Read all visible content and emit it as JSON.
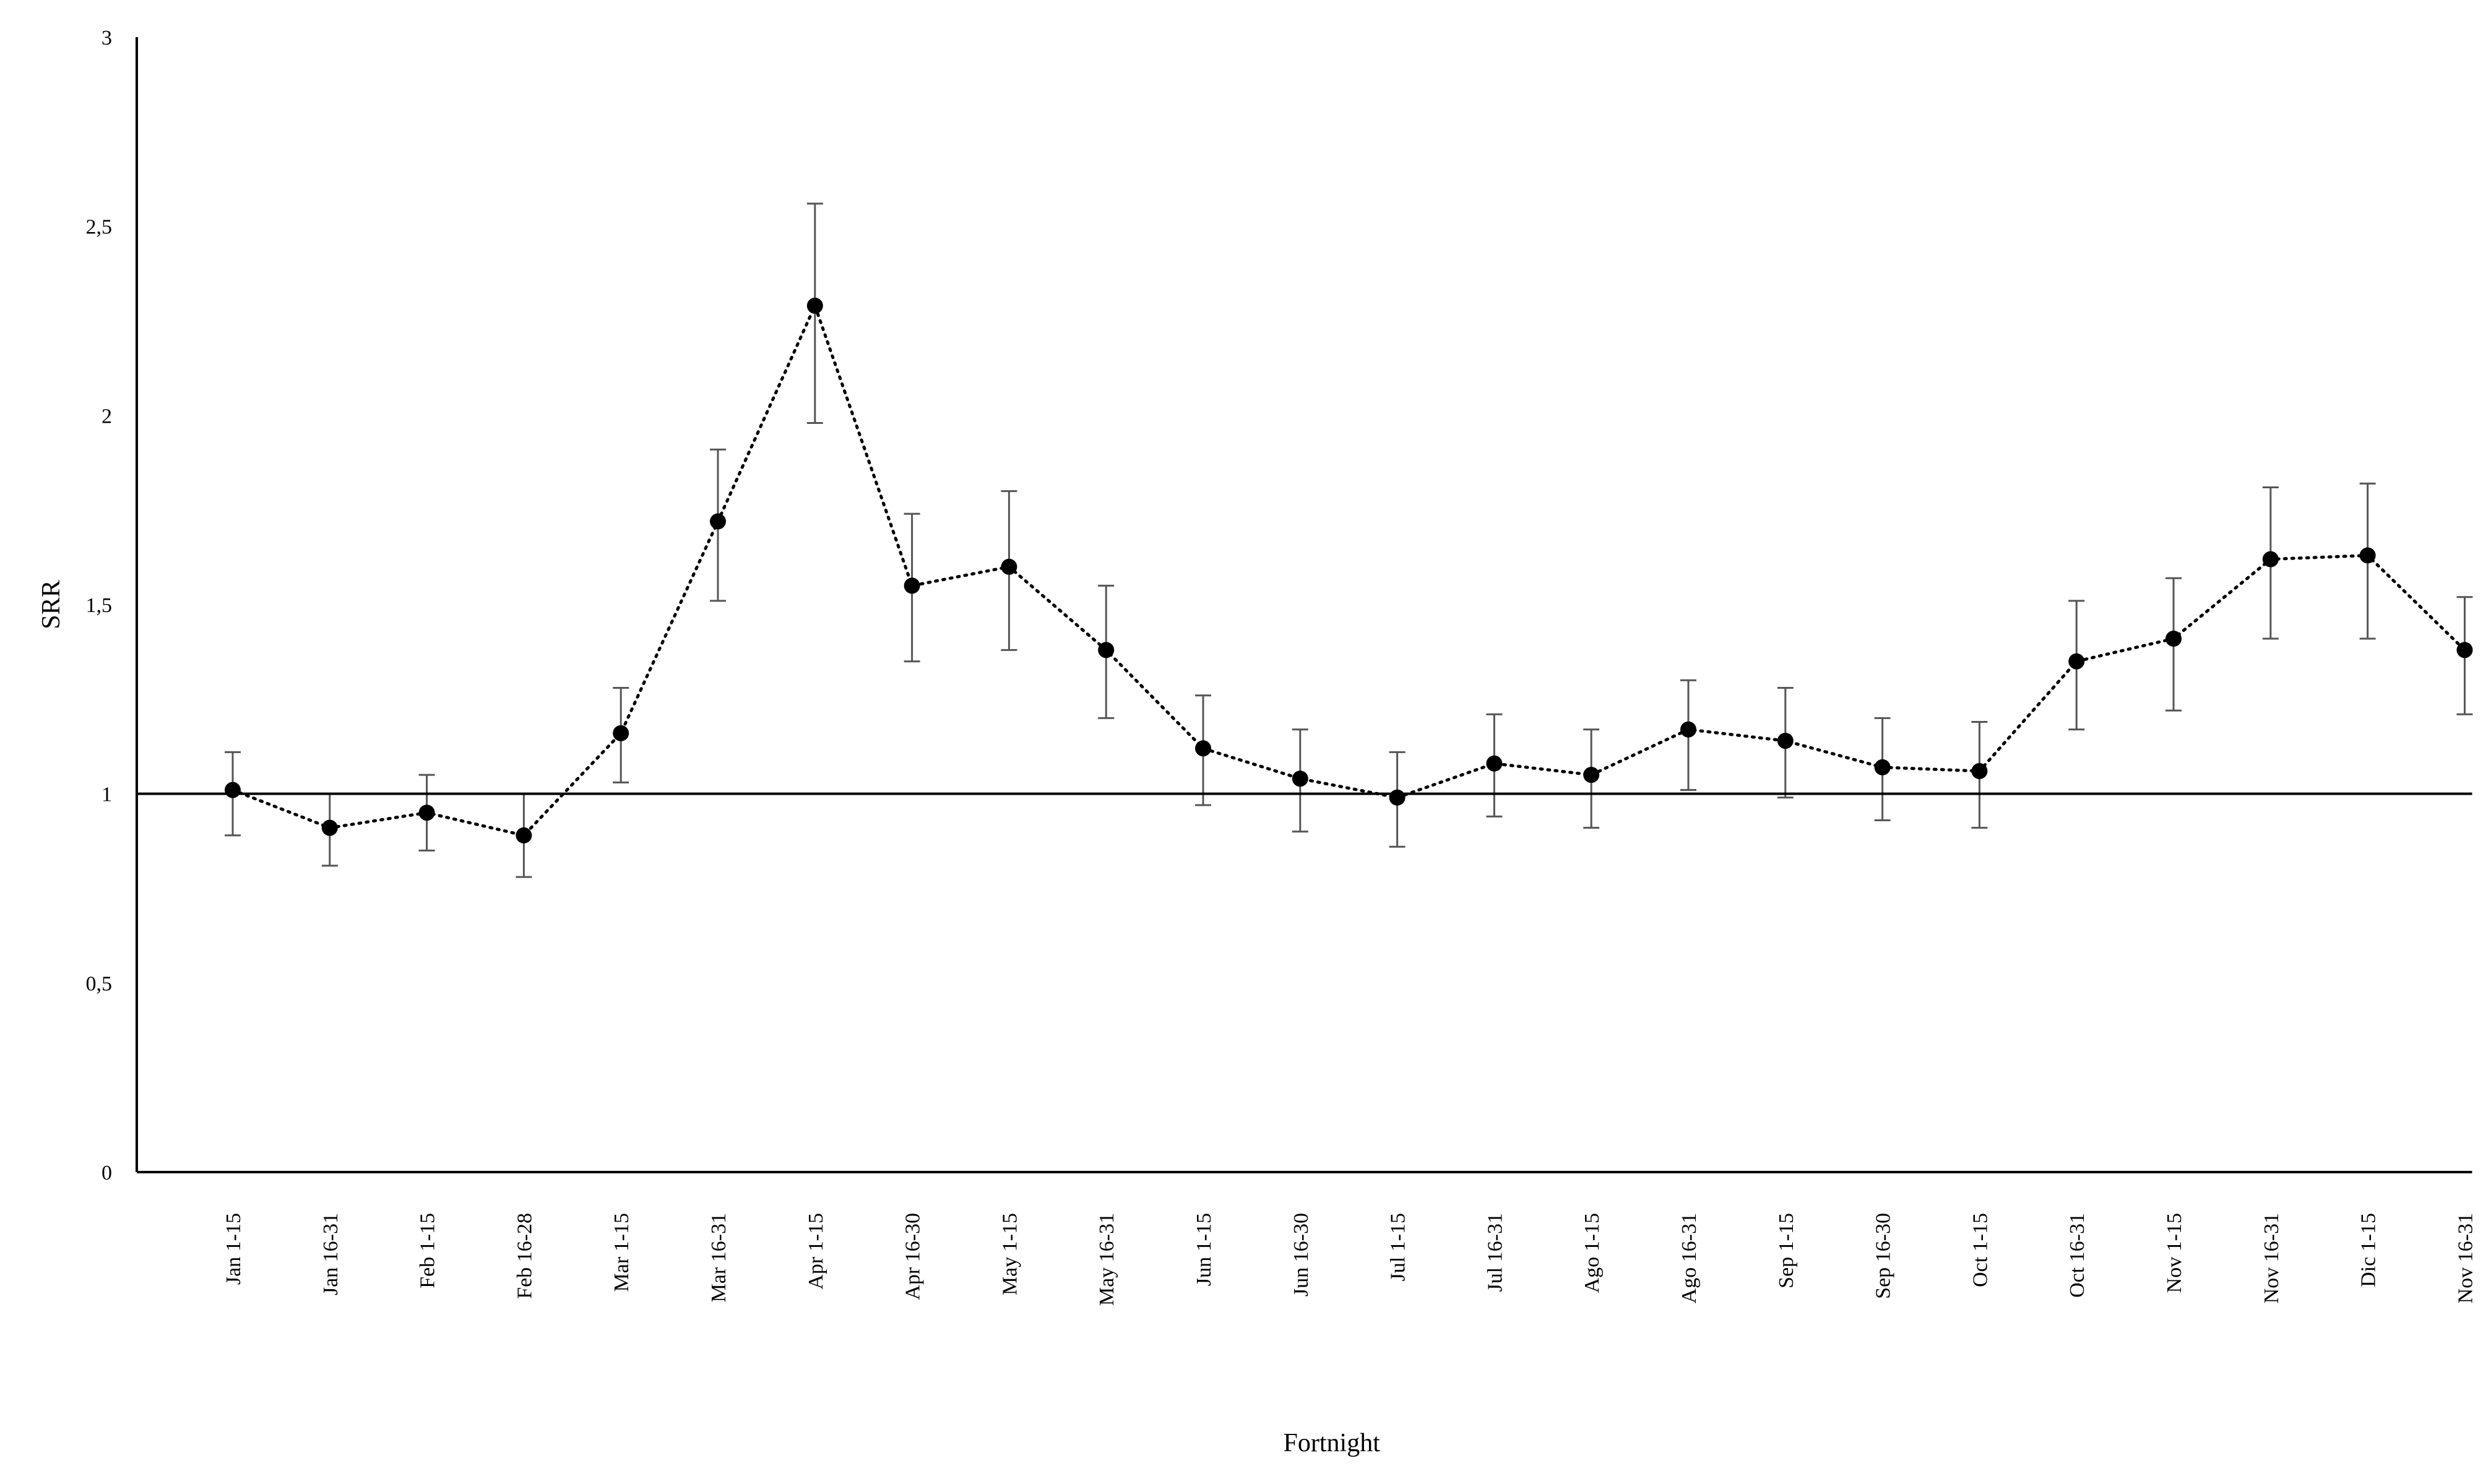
{
  "chart_data": {
    "type": "line",
    "xlabel": "Fortnight",
    "ylabel": "SRR",
    "ylim": [
      0,
      3
    ],
    "yticks": [
      {
        "value": 0,
        "label": "0"
      },
      {
        "value": 0.5,
        "label": "0,5"
      },
      {
        "value": 1,
        "label": "1"
      },
      {
        "value": 1.5,
        "label": "1,5"
      },
      {
        "value": 2,
        "label": "2"
      },
      {
        "value": 2.5,
        "label": "2,5"
      },
      {
        "value": 3,
        "label": "3"
      }
    ],
    "reference_line": 1,
    "grid": false,
    "categories": [
      "Jan 1-15",
      "Jan 16-31",
      "Feb 1-15",
      "Feb 16-28",
      "Mar 1-15",
      "Mar 16-31",
      "Apr 1-15",
      "Apr 16-30",
      "May 1-15",
      "May 16-31",
      "Jun 1-15",
      "Jun 16-30",
      "Jul 1-15",
      "Jul 16-31",
      "Ago 1-15",
      "Ago 16-31",
      "Sep 1-15",
      "Sep 16-30",
      "Oct 1-15",
      "Oct 16-31",
      "Nov 1-15",
      "Nov 16-31",
      "Dic 1-15",
      "Nov 16-31"
    ],
    "series": [
      {
        "values": [
          1.01,
          0.91,
          0.95,
          0.89,
          1.16,
          1.72,
          2.29,
          1.55,
          1.6,
          1.38,
          1.12,
          1.04,
          0.99,
          1.08,
          1.05,
          1.17,
          1.14,
          1.07,
          1.06,
          1.35,
          1.41,
          1.62,
          1.63,
          1.38
        ],
        "lower": [
          0.89,
          0.81,
          0.85,
          0.78,
          1.03,
          1.51,
          1.98,
          1.35,
          1.38,
          1.2,
          0.97,
          0.9,
          0.86,
          0.94,
          0.91,
          1.01,
          0.99,
          0.93,
          0.91,
          1.17,
          1.22,
          1.41,
          1.41,
          1.21
        ],
        "upper": [
          1.11,
          1.0,
          1.05,
          1.0,
          1.28,
          1.91,
          2.56,
          1.74,
          1.8,
          1.55,
          1.26,
          1.17,
          1.11,
          1.21,
          1.17,
          1.3,
          1.28,
          1.2,
          1.19,
          1.51,
          1.57,
          1.81,
          1.82,
          1.52
        ]
      }
    ]
  }
}
